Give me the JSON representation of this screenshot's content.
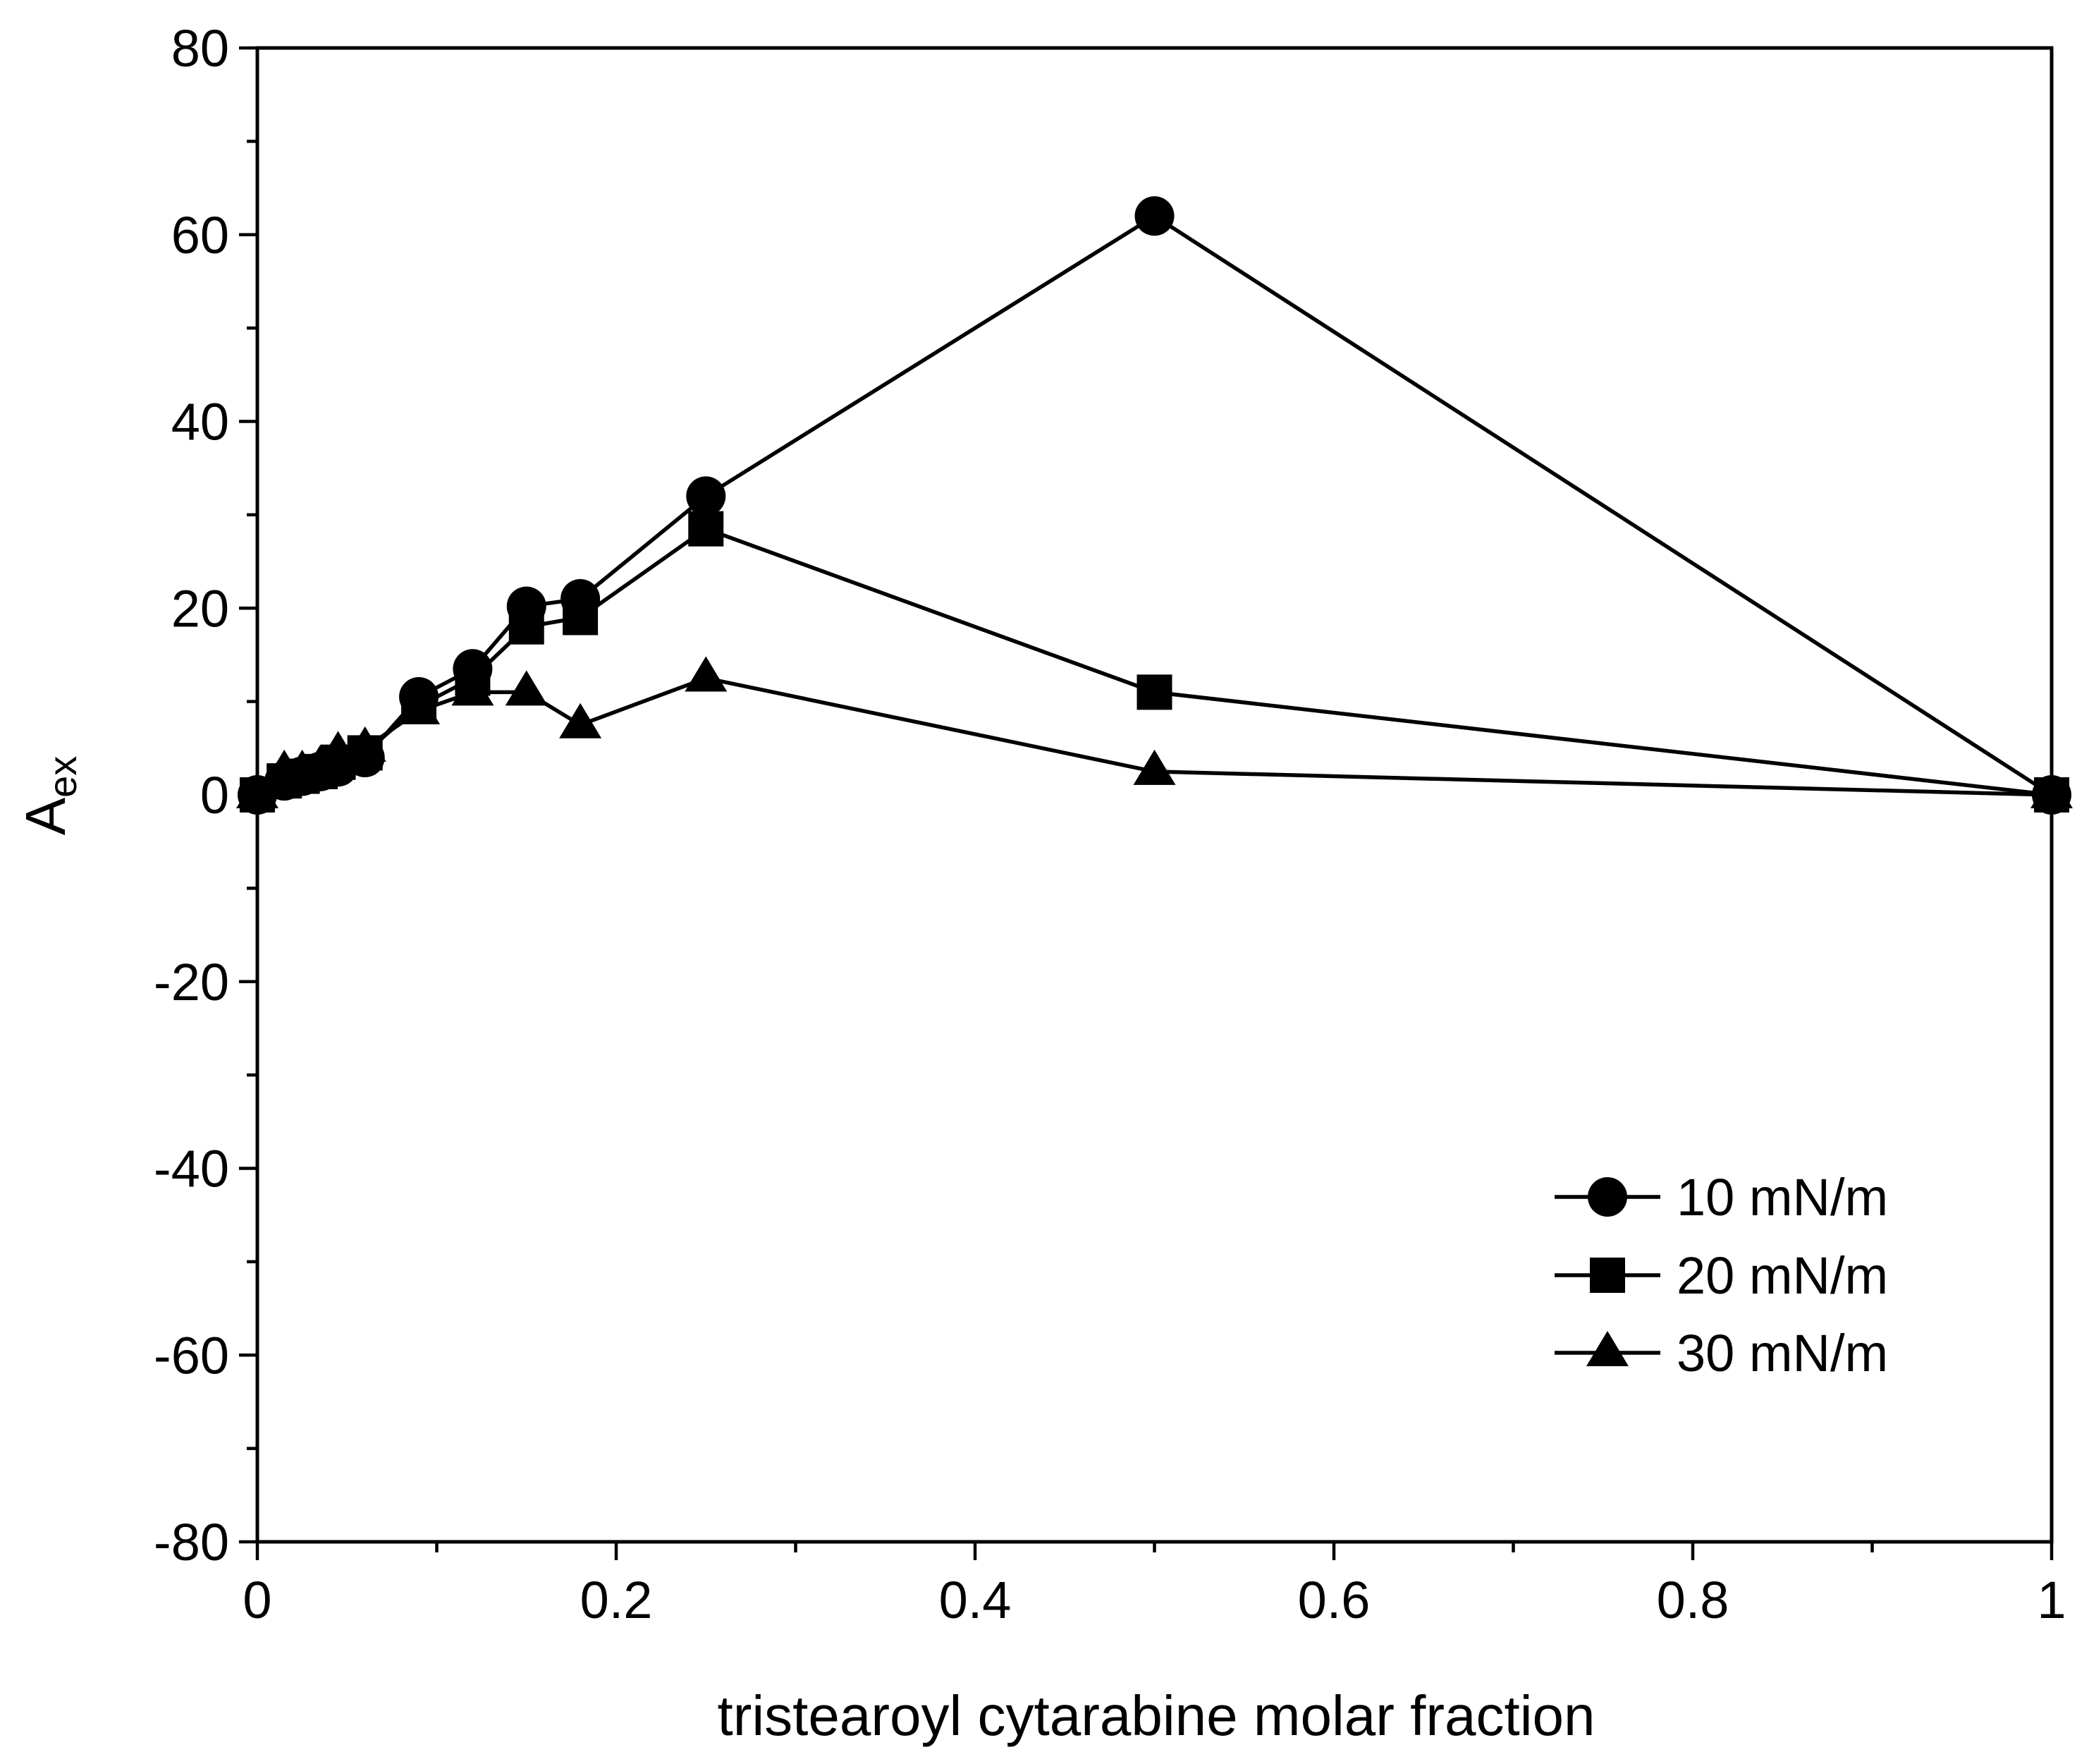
{
  "chart_data": {
    "type": "line",
    "title": "",
    "xlabel": "tristearoyl cytarabine molar fraction",
    "ylabel": {
      "main": "A",
      "subscript": "ex"
    },
    "xlim": [
      0,
      1
    ],
    "ylim": [
      -80,
      80
    ],
    "x_major_ticks": [
      0,
      0.2,
      0.4,
      0.6,
      0.8,
      1
    ],
    "x_tick_labels": [
      "0",
      "0.2",
      "0.4",
      "0.6",
      "0.8",
      "1"
    ],
    "x_minor_ticks": [
      0.1,
      0.3,
      0.5,
      0.7,
      0.9
    ],
    "y_major_ticks": [
      -80,
      -60,
      -40,
      -20,
      0,
      20,
      40,
      60,
      80
    ],
    "y_tick_labels": [
      "-80",
      "-60",
      "-40",
      "-20",
      "0",
      "20",
      "40",
      "60",
      "80"
    ],
    "y_minor_ticks": [
      -70,
      -50,
      -30,
      -10,
      10,
      30,
      50,
      70
    ],
    "grid": false,
    "legend_position": "lower-right",
    "colors": {
      "line": "#000000",
      "marker": "#000000",
      "axis": "#000000",
      "background": "#ffffff"
    },
    "series": [
      {
        "name": "10 mN/m",
        "marker": "circle",
        "x": [
          0,
          0.015,
          0.025,
          0.035,
          0.045,
          0.06,
          0.09,
          0.12,
          0.15,
          0.18,
          0.25,
          0.5,
          1
        ],
        "y": [
          0,
          1.5,
          2,
          2.5,
          3,
          4,
          10.5,
          13.5,
          20.2,
          21,
          32,
          62,
          0
        ]
      },
      {
        "name": "20 mN/m",
        "marker": "square",
        "x": [
          0,
          0.015,
          0.025,
          0.035,
          0.045,
          0.06,
          0.09,
          0.12,
          0.15,
          0.18,
          0.25,
          0.5,
          1
        ],
        "y": [
          0,
          1.5,
          2,
          2.5,
          3.5,
          4.5,
          9.5,
          12.5,
          18,
          19,
          28.5,
          11,
          0
        ]
      },
      {
        "name": "30 mN/m",
        "marker": "triangle",
        "x": [
          0,
          0.015,
          0.025,
          0.035,
          0.045,
          0.06,
          0.09,
          0.12,
          0.15,
          0.18,
          0.25,
          0.5,
          1
        ],
        "y": [
          0,
          2.5,
          2.5,
          3,
          4.5,
          5,
          9,
          11,
          11,
          7.5,
          12.5,
          2.5,
          0
        ]
      }
    ]
  }
}
